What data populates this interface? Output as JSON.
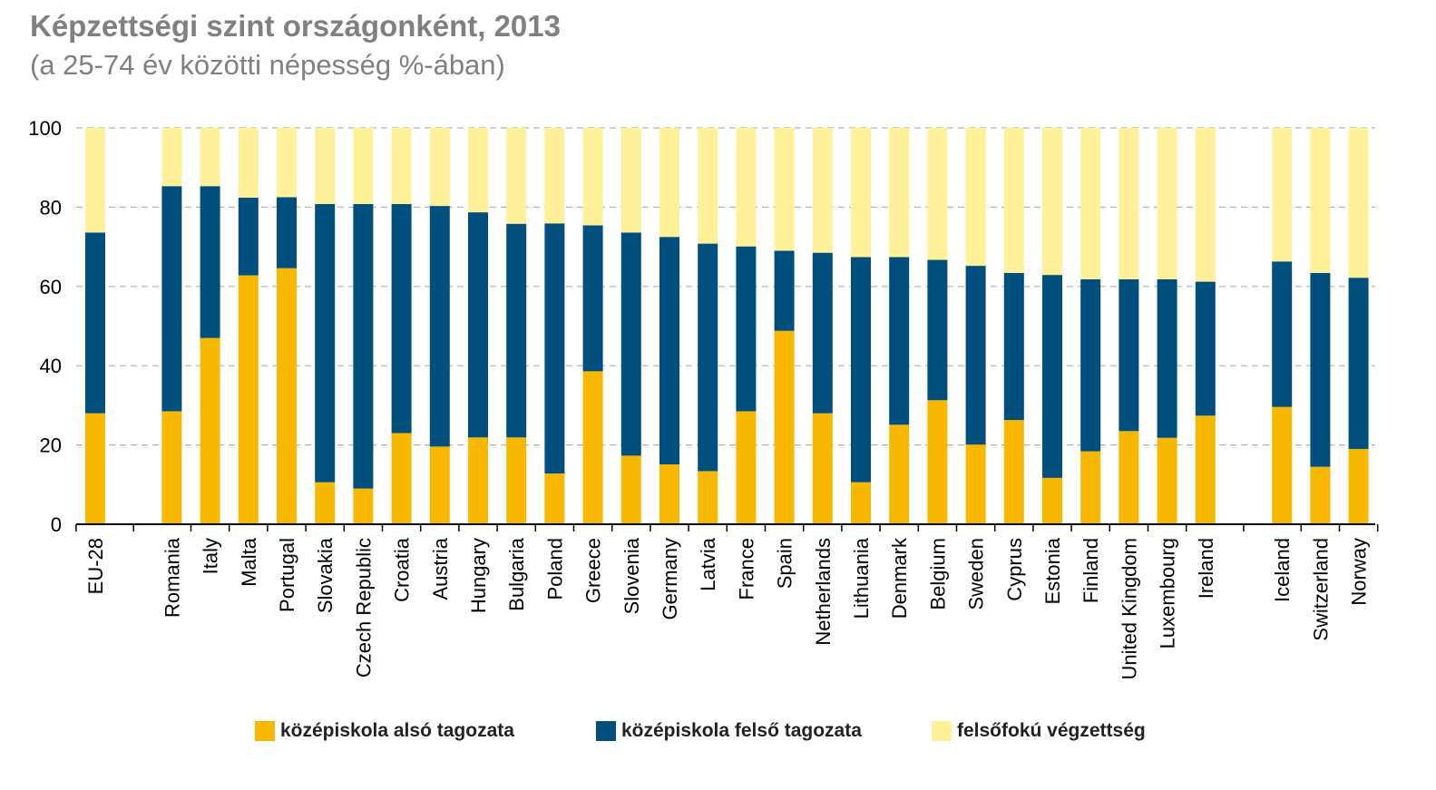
{
  "colors": {
    "lower_secondary": "#f9b800",
    "upper_secondary": "#004f7c",
    "tertiary": "#fff19a",
    "title": "#808080",
    "grid": "#b3b3b3",
    "axis": "#000000"
  },
  "chart_data": {
    "type": "bar",
    "stacked": true,
    "title": "Képzettségi szint országonként, 2013",
    "subtitle": "(a 25-74 év közötti népesség %-ában)",
    "xlabel": "",
    "ylabel": "",
    "ylim": [
      0,
      100
    ],
    "yticks": [
      0,
      20,
      40,
      60,
      80,
      100
    ],
    "grid": "horizontal dashed",
    "legend_position": "bottom",
    "categories": [
      "EU-28",
      "Romania",
      "Italy",
      "Malta",
      "Portugal",
      "Slovakia",
      "Czech Republic",
      "Croatia",
      "Austria",
      "Hungary",
      "Bulgaria",
      "Poland",
      "Greece",
      "Slovenia",
      "Germany",
      "Latvia",
      "France",
      "Spain",
      "Netherlands",
      "Lithuania",
      "Denmark",
      "Belgium",
      "Sweden",
      "Cyprus",
      "Estonia",
      "Finland",
      "United Kingdom",
      "Luxembourg",
      "Ireland",
      "Iceland",
      "Switzerland",
      "Norway"
    ],
    "groups": [
      1,
      28,
      3
    ],
    "series": [
      {
        "name": "középiskola alsó tagozata",
        "values": [
          28,
          28.5,
          47,
          62.8,
          64.6,
          10.6,
          9,
          23,
          19.6,
          21.9,
          21.9,
          12.8,
          38.6,
          17.3,
          15.1,
          13.4,
          28.5,
          48.8,
          28,
          10.6,
          25.1,
          31.3,
          20.1,
          26.3,
          11.7,
          18.4,
          23.5,
          21.8,
          27.4,
          29.6,
          14.5,
          19
        ]
      },
      {
        "name": "középiskola felső tagozata",
        "values": [
          45.6,
          56.8,
          38.3,
          19.6,
          17.9,
          70.2,
          71.8,
          57.8,
          60.7,
          56.8,
          53.9,
          63.1,
          36.8,
          56.3,
          57.4,
          57.4,
          41.6,
          20.2,
          40.5,
          56.8,
          42.3,
          35.4,
          45.1,
          37.1,
          51.2,
          43.4,
          38.3,
          40,
          33.8,
          36.7,
          48.9,
          43.2
        ]
      },
      {
        "name": "felsőfokú végzettség",
        "values": [
          26.4,
          14.7,
          14.7,
          17.6,
          17.5,
          19.2,
          19.2,
          19.2,
          19.7,
          21.3,
          24.2,
          24.1,
          24.6,
          26.4,
          27.5,
          29.2,
          29.9,
          31,
          31.5,
          32.6,
          32.6,
          33.3,
          34.8,
          36.6,
          37.1,
          38.2,
          38.2,
          38.2,
          38.8,
          33.7,
          36.6,
          37.8
        ]
      }
    ]
  }
}
